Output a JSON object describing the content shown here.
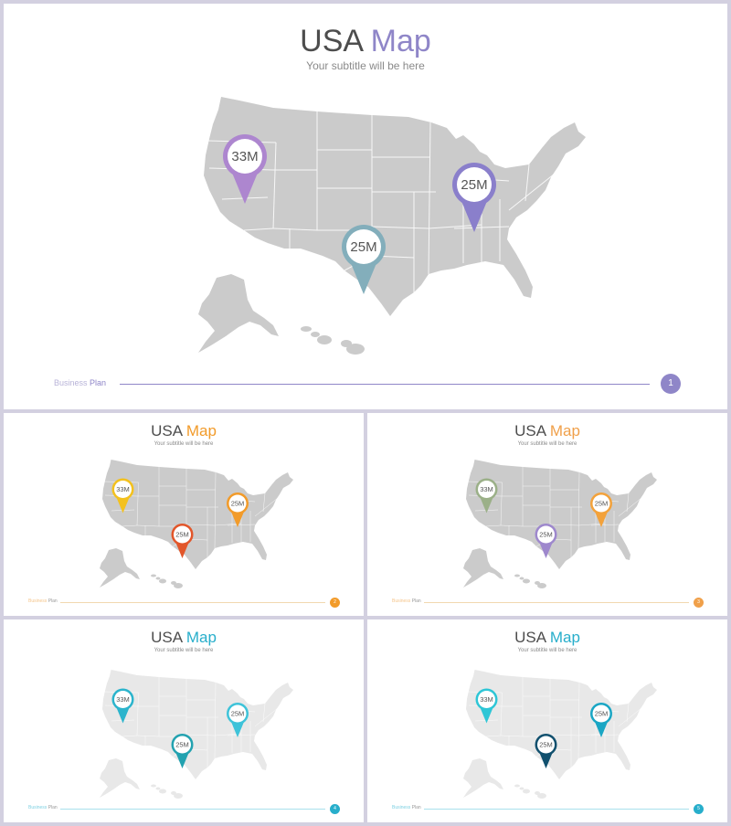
{
  "slides": [
    {
      "title_main": "USA",
      "title_accent": "Map",
      "subtitle": "Your subtitle will be here",
      "footer_label_1": "Business",
      "footer_label_2": "Plan",
      "page_number": "1",
      "accent_color": "#8f86c8",
      "pins": [
        {
          "label": "33M",
          "color": "#ad86cf",
          "state": "Nevada"
        },
        {
          "label": "25M",
          "color": "#83aebb",
          "state": "Texas"
        },
        {
          "label": "25M",
          "color": "#8a7fcb",
          "state": "Ohio"
        }
      ]
    },
    {
      "title_main": "USA",
      "title_accent": "Map",
      "subtitle": "Your subtitle will be here",
      "footer_label_1": "Business",
      "footer_label_2": "Plan",
      "page_number": "2",
      "accent_color": "#f29b2a",
      "pins": [
        {
          "label": "33M",
          "color": "#f3c11e",
          "state": "Nevada"
        },
        {
          "label": "25M",
          "color": "#e2562a",
          "state": "Texas"
        },
        {
          "label": "25M",
          "color": "#f29b2a",
          "state": "Ohio"
        }
      ]
    },
    {
      "title_main": "USA",
      "title_accent": "Map",
      "subtitle": "Your subtitle will be here",
      "footer_label_1": "Business",
      "footer_label_2": "Plan",
      "page_number": "3",
      "accent_color": "#f0a04a",
      "pins": [
        {
          "label": "33M",
          "color": "#9bb088",
          "state": "Nevada"
        },
        {
          "label": "25M",
          "color": "#9e88cd",
          "state": "Texas"
        },
        {
          "label": "25M",
          "color": "#f3a23b",
          "state": "Ohio"
        }
      ]
    },
    {
      "title_main": "USA",
      "title_accent": "Map",
      "subtitle": "Your subtitle will be here",
      "footer_label_1": "Business",
      "footer_label_2": "Plan",
      "page_number": "4",
      "accent_color": "#27aecb",
      "pins": [
        {
          "label": "33M",
          "color": "#2bb4cc",
          "state": "Nevada"
        },
        {
          "label": "25M",
          "color": "#23a2b0",
          "state": "Texas"
        },
        {
          "label": "25M",
          "color": "#3ec3d9",
          "state": "Ohio"
        }
      ]
    },
    {
      "title_main": "USA",
      "title_accent": "Map",
      "subtitle": "Your subtitle will be here",
      "footer_label_1": "Business",
      "footer_label_2": "Plan",
      "page_number": "5",
      "accent_color": "#27aecb",
      "pins": [
        {
          "label": "33M",
          "color": "#2ec6d6",
          "state": "Nevada"
        },
        {
          "label": "25M",
          "color": "#11506e",
          "state": "Texas"
        },
        {
          "label": "25M",
          "color": "#1aa6c4",
          "state": "Ohio"
        }
      ]
    }
  ]
}
